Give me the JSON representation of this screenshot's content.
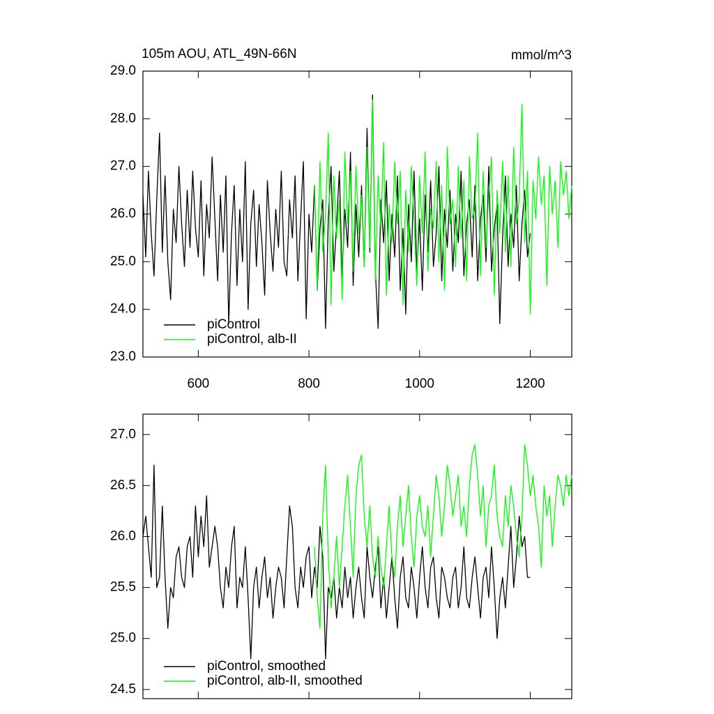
{
  "chart_data": [
    {
      "type": "line",
      "title": "105m AOU, ATL_49N-66N",
      "units": "mmol/m^3",
      "legend": "lower left",
      "x": [
        500,
        505,
        510,
        515,
        520,
        525,
        530,
        535,
        540,
        545,
        550,
        555,
        560,
        565,
        570,
        575,
        580,
        585,
        590,
        595,
        600,
        605,
        610,
        615,
        620,
        625,
        630,
        635,
        640,
        645,
        650,
        655,
        660,
        665,
        670,
        675,
        680,
        685,
        690,
        695,
        700,
        705,
        710,
        715,
        720,
        725,
        730,
        735,
        740,
        745,
        750,
        755,
        760,
        765,
        770,
        775,
        780,
        785,
        790,
        795,
        800,
        805,
        810,
        815,
        820,
        825,
        830,
        835,
        840,
        845,
        850,
        855,
        860,
        865,
        870,
        875,
        880,
        885,
        890,
        895,
        900,
        905,
        910,
        915,
        920,
        925,
        930,
        935,
        940,
        945,
        950,
        955,
        960,
        965,
        970,
        975,
        980,
        985,
        990,
        995,
        1000,
        1005,
        1010,
        1015,
        1020,
        1025,
        1030,
        1035,
        1040,
        1045,
        1050,
        1055,
        1060,
        1065,
        1070,
        1075,
        1080,
        1085,
        1090,
        1095,
        1100,
        1105,
        1110,
        1115,
        1120,
        1125,
        1130,
        1135,
        1140,
        1145,
        1150,
        1155,
        1160,
        1165,
        1170,
        1175,
        1180,
        1185,
        1190,
        1195,
        1200,
        1205,
        1210,
        1215,
        1220,
        1225,
        1230,
        1235,
        1240,
        1245,
        1250,
        1255,
        1260,
        1265,
        1270,
        1275
      ],
      "xlim": [
        500,
        1275
      ],
      "xticks": [
        600,
        800,
        1000,
        1200
      ],
      "ylim": [
        23,
        29
      ],
      "yticks": [
        {
          "value": 23,
          "label": "23.0"
        },
        {
          "value": 24,
          "label": "24.0"
        },
        {
          "value": 25,
          "label": "25.0"
        },
        {
          "value": 26,
          "label": "26.0"
        },
        {
          "value": 27,
          "label": "27.0"
        },
        {
          "value": 28,
          "label": "28.0"
        },
        {
          "value": 29,
          "label": "29.0"
        }
      ],
      "series": [
        {
          "name": "piControl",
          "color": "#000000",
          "values": [
            26.4,
            25.1,
            26.9,
            25.6,
            24.7,
            26.3,
            27.7,
            25.2,
            26.8,
            25.0,
            24.2,
            26.1,
            25.4,
            27.0,
            25.8,
            24.9,
            26.5,
            25.3,
            26.9,
            25.7,
            25.1,
            26.7,
            24.7,
            26.2,
            25.5,
            27.2,
            25.9,
            24.6,
            26.4,
            25.2,
            26.8,
            23.7,
            25.6,
            26.6,
            24.5,
            26.1,
            25.0,
            27.1,
            24.0,
            25.8,
            26.5,
            24.9,
            26.2,
            25.4,
            24.3,
            26.7,
            25.6,
            24.8,
            26.1,
            25.3,
            26.9,
            25.0,
            24.7,
            26.3,
            25.5,
            26.8,
            24.6,
            25.9,
            27.1,
            23.8,
            26.0,
            25.2,
            26.6,
            24.4,
            25.7,
            26.3,
            23.6,
            25.9,
            27.0,
            24.8,
            25.8,
            26.9,
            24.7,
            26.1,
            25.3,
            27.3,
            24.5,
            26.2,
            25.1,
            26.6,
            24.9,
            27.8,
            25.2,
            28.5,
            24.8,
            23.6,
            26.3,
            25.4,
            26.7,
            24.6,
            26.0,
            25.1,
            26.8,
            24.4,
            25.7,
            23.9,
            26.2,
            25.0,
            26.9,
            24.8,
            25.9,
            24.4,
            26.4,
            25.2,
            26.7,
            24.9,
            25.6,
            27.0,
            24.6,
            26.1,
            25.3,
            26.5,
            24.8,
            26.0,
            25.4,
            26.9,
            24.7,
            25.8,
            26.3,
            25.1,
            26.6,
            24.6,
            25.9,
            26.4,
            25.0,
            27.0,
            24.8,
            25.7,
            26.2,
            23.7,
            25.5,
            26.8,
            24.9,
            26.0,
            25.3,
            26.6,
            24.6,
            25.8,
            26.5,
            25.1,
            25.6,
            null,
            null,
            null,
            null,
            null,
            null,
            null,
            null,
            null,
            null,
            null,
            null,
            null,
            null,
            null
          ]
        },
        {
          "name": "piControl, alb-II",
          "color": "#00ff00",
          "values": [
            null,
            null,
            null,
            null,
            null,
            null,
            null,
            null,
            null,
            null,
            null,
            null,
            null,
            null,
            null,
            null,
            null,
            null,
            null,
            null,
            null,
            null,
            null,
            null,
            null,
            null,
            null,
            null,
            null,
            null,
            null,
            null,
            null,
            null,
            null,
            null,
            null,
            null,
            null,
            null,
            null,
            null,
            null,
            null,
            null,
            null,
            null,
            null,
            null,
            null,
            null,
            null,
            null,
            null,
            null,
            null,
            null,
            null,
            null,
            null,
            null,
            null,
            26.6,
            24.4,
            27.1,
            25.2,
            26.0,
            27.7,
            24.1,
            26.8,
            25.5,
            26.3,
            24.2,
            27.3,
            25.8,
            26.9,
            24.8,
            27.0,
            25.6,
            26.4,
            24.9,
            27.4,
            25.3,
            28.4,
            24.6,
            26.8,
            25.7,
            27.5,
            24.3,
            26.2,
            25.4,
            27.1,
            25.8,
            26.9,
            24.1,
            26.5,
            25.2,
            27.0,
            25.9,
            24.5,
            26.8,
            25.6,
            27.3,
            24.8,
            26.1,
            25.7,
            27.1,
            25.0,
            26.6,
            24.4,
            27.4,
            25.8,
            26.3,
            24.9,
            27.0,
            25.5,
            26.7,
            24.6,
            27.2,
            25.9,
            26.1,
            27.7,
            24.7,
            26.9,
            25.3,
            26.4,
            27.2,
            24.3,
            26.5,
            25.6,
            27.1,
            25.2,
            26.8,
            24.9,
            27.4,
            25.8,
            26.3,
            28.3,
            25.4,
            26.9,
            23.9,
            26.7,
            25.9,
            27.2,
            26.2,
            26.8,
            24.5,
            27.0,
            26.0,
            26.7,
            25.3,
            27.1,
            26.4,
            26.9,
            25.9,
            26.6
          ]
        }
      ]
    },
    {
      "type": "line",
      "legend": "lower left",
      "x": [
        500,
        505,
        510,
        515,
        520,
        525,
        530,
        535,
        540,
        545,
        550,
        555,
        560,
        565,
        570,
        575,
        580,
        585,
        590,
        595,
        600,
        605,
        610,
        615,
        620,
        625,
        630,
        635,
        640,
        645,
        650,
        655,
        660,
        665,
        670,
        675,
        680,
        685,
        690,
        695,
        700,
        705,
        710,
        715,
        720,
        725,
        730,
        735,
        740,
        745,
        750,
        755,
        760,
        765,
        770,
        775,
        780,
        785,
        790,
        795,
        800,
        805,
        810,
        815,
        820,
        825,
        830,
        835,
        840,
        845,
        850,
        855,
        860,
        865,
        870,
        875,
        880,
        885,
        890,
        895,
        900,
        905,
        910,
        915,
        920,
        925,
        930,
        935,
        940,
        945,
        950,
        955,
        960,
        965,
        970,
        975,
        980,
        985,
        990,
        995,
        1000,
        1005,
        1010,
        1015,
        1020,
        1025,
        1030,
        1035,
        1040,
        1045,
        1050,
        1055,
        1060,
        1065,
        1070,
        1075,
        1080,
        1085,
        1090,
        1095,
        1100,
        1105,
        1110,
        1115,
        1120,
        1125,
        1130,
        1135,
        1140,
        1145,
        1150,
        1155,
        1160,
        1165,
        1170,
        1175,
        1180,
        1185,
        1190,
        1195,
        1200,
        1205,
        1210,
        1215,
        1220,
        1225,
        1230,
        1235,
        1240,
        1245,
        1250,
        1255,
        1260,
        1265,
        1270,
        1275
      ],
      "xlim": [
        500,
        1275
      ],
      "ylim": [
        24.41,
        27.2
      ],
      "yticks": [
        24.5,
        {
          "value": 25,
          "label": "25.0"
        },
        25.5,
        {
          "value": 26,
          "label": "26.0"
        },
        26.5,
        {
          "value": 27,
          "label": "27.0"
        }
      ],
      "series": [
        {
          "name": "piControl, smoothed",
          "color": "#000000",
          "values": [
            26.0,
            26.2,
            25.9,
            25.6,
            26.7,
            25.5,
            25.6,
            26.3,
            25.6,
            25.1,
            25.5,
            25.4,
            25.8,
            25.9,
            25.6,
            25.5,
            25.9,
            26.0,
            25.6,
            26.3,
            25.8,
            26.2,
            25.9,
            26.4,
            25.7,
            25.9,
            26.1,
            25.9,
            25.5,
            25.3,
            25.7,
            25.5,
            25.9,
            26.1,
            25.3,
            25.6,
            25.5,
            25.9,
            25.4,
            24.8,
            25.5,
            25.7,
            25.3,
            25.6,
            25.8,
            25.4,
            25.6,
            25.2,
            25.5,
            25.7,
            25.6,
            25.3,
            25.8,
            26.3,
            26.1,
            25.5,
            25.3,
            25.7,
            25.5,
            25.8,
            25.9,
            25.4,
            25.7,
            25.5,
            26.1,
            25.8,
            24.8,
            25.5,
            25.4,
            25.6,
            25.2,
            25.5,
            25.3,
            25.7,
            25.4,
            25.6,
            25.2,
            25.5,
            25.7,
            25.4,
            25.2,
            25.9,
            25.6,
            25.4,
            25.7,
            25.9,
            25.3,
            25.6,
            25.2,
            25.5,
            25.8,
            25.4,
            25.1,
            25.6,
            25.8,
            25.4,
            25.3,
            25.7,
            25.5,
            25.2,
            25.6,
            25.9,
            25.5,
            25.3,
            25.7,
            25.8,
            25.4,
            25.2,
            25.7,
            25.6,
            25.4,
            25.3,
            25.6,
            25.7,
            25.3,
            25.5,
            25.9,
            25.4,
            25.3,
            25.6,
            25.8,
            25.5,
            25.2,
            25.6,
            25.7,
            25.4,
            25.9,
            25.5,
            25.0,
            25.4,
            25.6,
            25.3,
            25.7,
            26.1,
            25.5,
            25.8,
            26.2,
            25.9,
            26.0,
            25.6,
            25.6,
            null,
            null,
            null,
            null,
            null,
            null,
            null,
            null,
            null,
            null,
            null,
            null,
            null,
            null,
            null
          ]
        },
        {
          "name": "piControl, alb-II, smoothed",
          "color": "#00ff00",
          "values": [
            null,
            null,
            null,
            null,
            null,
            null,
            null,
            null,
            null,
            null,
            null,
            null,
            null,
            null,
            null,
            null,
            null,
            null,
            null,
            null,
            null,
            null,
            null,
            null,
            null,
            null,
            null,
            null,
            null,
            null,
            null,
            null,
            null,
            null,
            null,
            null,
            null,
            null,
            null,
            null,
            null,
            null,
            null,
            null,
            null,
            null,
            null,
            null,
            null,
            null,
            null,
            null,
            null,
            null,
            null,
            null,
            null,
            null,
            null,
            null,
            null,
            null,
            25.9,
            25.4,
            25.1,
            26.2,
            26.7,
            25.8,
            25.3,
            25.6,
            26.0,
            25.5,
            25.9,
            26.3,
            26.6,
            26.1,
            25.6,
            26.4,
            26.7,
            26.8,
            26.2,
            25.9,
            26.3,
            25.8,
            25.6,
            26.0,
            25.7,
            25.5,
            25.9,
            26.3,
            25.8,
            25.6,
            26.1,
            26.4,
            25.9,
            26.2,
            26.5,
            26.0,
            25.7,
            26.2,
            26.4,
            26.1,
            26.0,
            26.3,
            25.8,
            26.2,
            26.6,
            26.4,
            26.0,
            26.3,
            26.7,
            26.5,
            26.2,
            26.4,
            26.6,
            26.1,
            26.3,
            26.0,
            26.5,
            26.8,
            26.9,
            26.6,
            26.2,
            26.5,
            25.9,
            26.3,
            26.4,
            26.7,
            26.2,
            26.0,
            25.9,
            26.4,
            26.1,
            26.5,
            26.3,
            26.0,
            25.8,
            26.2,
            26.9,
            26.7,
            26.4,
            26.6,
            26.3,
            26.1,
            25.7,
            26.5,
            26.2,
            26.4,
            25.9,
            26.3,
            26.6,
            26.5,
            26.3,
            26.6,
            26.4,
            26.6
          ]
        }
      ]
    }
  ]
}
